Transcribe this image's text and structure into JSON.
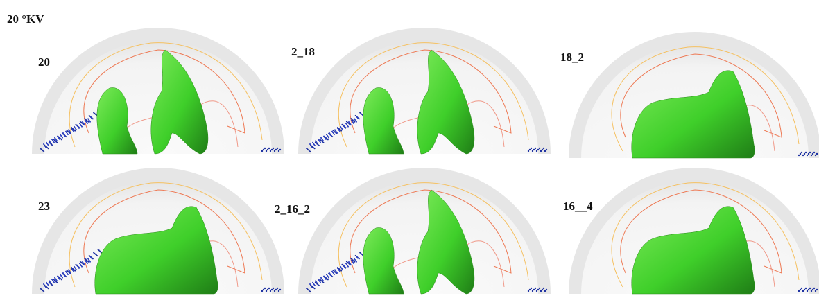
{
  "title": "20 °KV",
  "panels": [
    {
      "label": "20"
    },
    {
      "label": "2_18"
    },
    {
      "label": "18_2"
    },
    {
      "label": "23"
    },
    {
      "label": "2_16_2"
    },
    {
      "label": "16__4"
    }
  ]
}
